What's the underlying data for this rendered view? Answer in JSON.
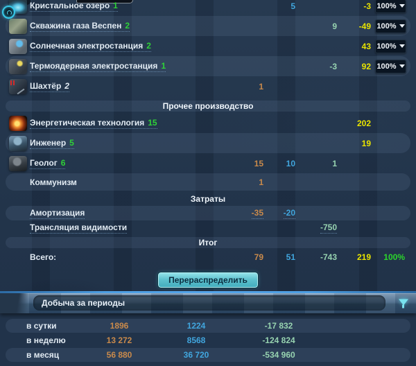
{
  "production": {
    "entries": [
      {
        "label": "Кристальное озеро",
        "level": "1",
        "crystal": "5",
        "energy": "-3",
        "percent": "100%",
        "icon": "crystal-lake"
      },
      {
        "label": "Скважина газа Веспен",
        "level": "2",
        "gas": "9",
        "energy": "-49",
        "percent": "100%",
        "icon": "gas-well"
      },
      {
        "label": "Солнечная электростанция",
        "level": "2",
        "energy": "43",
        "percent": "100%",
        "icon": "solar-plant"
      },
      {
        "label": "Термоядерная электростанция",
        "level": "1",
        "gas": "-3",
        "energy": "92",
        "percent": "100%",
        "icon": "fusion-plant"
      },
      {
        "label": "Шахтёр",
        "level": "2",
        "metal": "1",
        "icon": "miner"
      },
      {
        "kind": "header",
        "label": "Прочее производство"
      },
      {
        "label": "Энергетическая технология",
        "level": "15",
        "energy": "202",
        "icon": "energy-tech"
      },
      {
        "label": "Инженер",
        "level": "5",
        "energy": "19",
        "icon": "engineer"
      },
      {
        "label": "Геолог",
        "level": "6",
        "metal": "15",
        "crystal": "10",
        "gas": "1",
        "icon": "geologist"
      },
      {
        "label": "Коммунизм",
        "metal": "1"
      },
      {
        "kind": "header",
        "label": "Затраты"
      },
      {
        "label": "Амортизация",
        "metal": "-35",
        "crystal": "-20"
      },
      {
        "label": "Трансляция видимости",
        "gas": "-750"
      },
      {
        "kind": "header",
        "label": "Итог"
      },
      {
        "label": "Всего:",
        "metal": "79",
        "crystal": "51",
        "gas": "-743",
        "energy": "219",
        "percent_total": "100%"
      }
    ]
  },
  "redistribute_button": {
    "label": "Перераспределить"
  },
  "periods": {
    "title": "Добыча за периоды",
    "rows": [
      {
        "label": "в сутки",
        "metal": "1896",
        "crystal": "1224",
        "gas": "-17 832"
      },
      {
        "label": "в неделю",
        "metal": "13 272",
        "crystal": "8568",
        "gas": "-124 824"
      },
      {
        "label": "в месяц",
        "metal": "56 880",
        "crystal": "36 720",
        "gas": "-534 960"
      }
    ]
  },
  "colors": {
    "metal": "#c98a4b",
    "crystal": "#41a6de",
    "gas": "#97d3b0",
    "energy": "#e9e400",
    "percent": "#2bd62b",
    "level_green": "#2fd138",
    "accent_cyan": "#79e2ef",
    "panel_blue": "#4fa3e8"
  }
}
